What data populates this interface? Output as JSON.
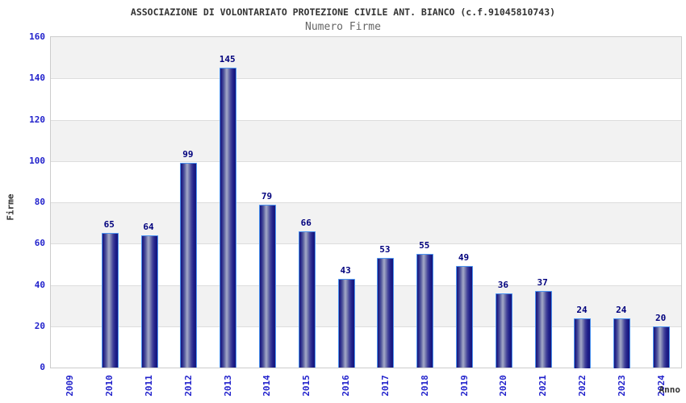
{
  "header": {
    "title": "ASSOCIAZIONE DI VOLONTARIATO PROTEZIONE CIVILE ANT. BIANCO (c.f.91045810743)",
    "subtitle": "Numero Firme"
  },
  "chart_data": {
    "type": "bar",
    "title": "ASSOCIAZIONE DI VOLONTARIATO PROTEZIONE CIVILE ANT. BIANCO (c.f.91045810743)",
    "subtitle": "Numero Firme",
    "xlabel": "Anno",
    "ylabel": "Firme",
    "categories": [
      "2009",
      "2010",
      "2011",
      "2012",
      "2013",
      "2014",
      "2015",
      "2016",
      "2017",
      "2018",
      "2019",
      "2020",
      "2021",
      "2022",
      "2023",
      "2024"
    ],
    "values": [
      0,
      65,
      64,
      99,
      145,
      79,
      66,
      43,
      53,
      55,
      49,
      36,
      37,
      24,
      24,
      20
    ],
    "ylim": [
      0,
      160
    ],
    "ytick_step": 20,
    "y_ticks": [
      0,
      20,
      40,
      60,
      80,
      100,
      120,
      140,
      160
    ],
    "grid": "horizontal-bands-alternating",
    "legend_position": "none",
    "bar_labels_shown": true
  },
  "colors": {
    "title_text": "#333333",
    "subtitle_text": "#666666",
    "tick_text": "#2222cc",
    "bar_value_text": "#00007d",
    "axis_title_text": "#333333",
    "band_gray": "#f2f2f2",
    "band_white": "#ffffff",
    "gridline": "#dddddd",
    "plot_border": "#cccccc",
    "bar_border": "#4d94f0",
    "bar_dark": "#16167a",
    "bar_highlight": "#a4a9c8"
  }
}
